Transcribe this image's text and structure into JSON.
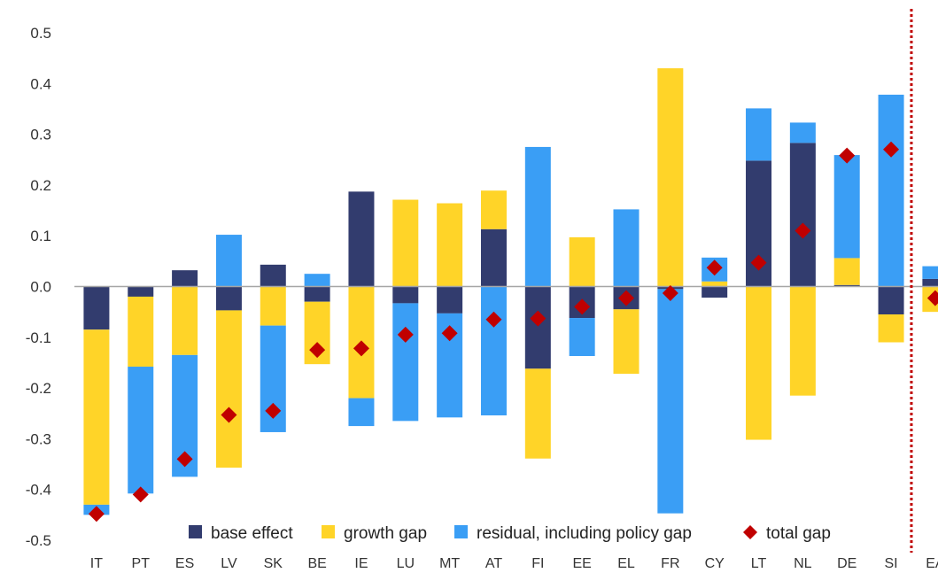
{
  "chart_data": {
    "type": "bar",
    "stacked": true,
    "categories": [
      "IT",
      "PT",
      "ES",
      "LV",
      "SK",
      "BE",
      "IE",
      "LU",
      "MT",
      "AT",
      "FI",
      "EE",
      "EL",
      "FR",
      "CY",
      "LT",
      "NL",
      "DE",
      "SI",
      "EA"
    ],
    "ylim": [
      -0.5,
      0.5
    ],
    "yticks": [
      0.5,
      0.4,
      0.3,
      0.2,
      0.1,
      0.0,
      -0.1,
      -0.2,
      -0.3,
      -0.4,
      -0.5
    ],
    "ytick_labels": [
      "0.5",
      "0.4",
      "0.3",
      "0.2",
      "0.1",
      "0.0",
      "-0.1",
      "-0.2",
      "-0.3",
      "-0.4",
      "-0.5"
    ],
    "grid": false,
    "legend_position": "bottom",
    "separator_before": "EA",
    "colors": {
      "base_effect": "#323c6e",
      "growth_gap": "#ffd428",
      "residual": "#3a9ef5",
      "total_gap": "#c00000",
      "separator": "#c00000",
      "axis": "#a6a6a6"
    },
    "series": [
      {
        "name": "base effect",
        "key": "base_effect",
        "kind": "bar",
        "values": [
          -0.085,
          -0.02,
          0.032,
          -0.047,
          0.043,
          -0.03,
          0.187,
          -0.033,
          -0.053,
          0.113,
          -0.162,
          -0.062,
          -0.045,
          -0.005,
          -0.022,
          0.248,
          0.283,
          0.003,
          -0.055,
          0.015
        ]
      },
      {
        "name": "growth gap",
        "key": "growth_gap",
        "kind": "bar",
        "values": [
          -0.345,
          -0.138,
          -0.135,
          -0.31,
          -0.077,
          -0.123,
          -0.22,
          0.171,
          0.164,
          0.076,
          -0.177,
          0.097,
          -0.127,
          0.43,
          0.01,
          -0.302,
          -0.215,
          0.053,
          -0.055,
          -0.05
        ]
      },
      {
        "name": "residual, including policy gap",
        "key": "residual",
        "kind": "bar",
        "values": [
          -0.02,
          -0.25,
          -0.24,
          0.102,
          -0.21,
          0.025,
          -0.055,
          -0.232,
          -0.205,
          -0.254,
          0.275,
          -0.075,
          0.152,
          -0.442,
          0.047,
          0.103,
          0.04,
          0.203,
          0.378,
          0.025
        ]
      },
      {
        "name": "total gap",
        "key": "total_gap",
        "kind": "marker",
        "values": [
          -0.448,
          -0.41,
          -0.34,
          -0.253,
          -0.245,
          -0.125,
          -0.122,
          -0.095,
          -0.092,
          -0.065,
          -0.063,
          -0.04,
          -0.023,
          -0.013,
          0.037,
          0.047,
          0.11,
          0.258,
          0.27,
          -0.023
        ]
      }
    ]
  }
}
